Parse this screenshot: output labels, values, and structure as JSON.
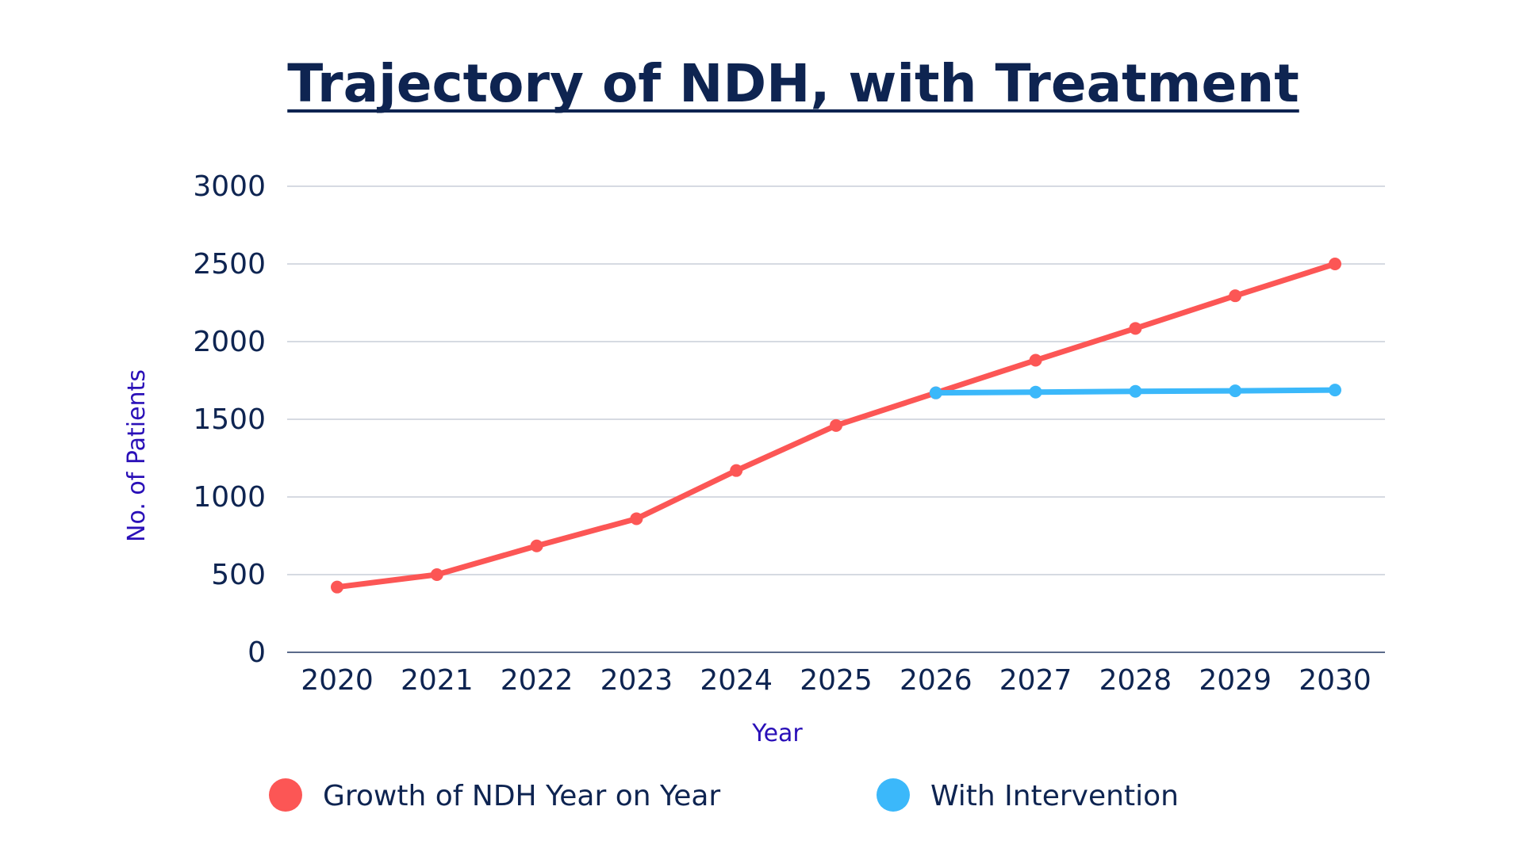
{
  "chart_data": {
    "type": "line",
    "title": "Trajectory of NDH, with Treatment",
    "xlabel": "Year",
    "ylabel": "No. of Patients",
    "categories": [
      "2020",
      "2021",
      "2022",
      "2023",
      "2024",
      "2025",
      "2026",
      "2027",
      "2028",
      "2029",
      "2030"
    ],
    "ylim": [
      0,
      3000
    ],
    "yticks": [
      0,
      500,
      1000,
      1500,
      2000,
      2500,
      3000
    ],
    "grid": true,
    "legend_position": "bottom",
    "series": [
      {
        "name": "Growth of NDH Year on Year",
        "color": "#fc5655",
        "values": [
          420,
          500,
          685,
          860,
          1170,
          1460,
          1670,
          1880,
          2085,
          2295,
          2500
        ]
      },
      {
        "name": "With Intervention",
        "color": "#3bb8fa",
        "values": [
          null,
          null,
          null,
          null,
          null,
          null,
          1670,
          1675,
          1680,
          1683,
          1688
        ]
      }
    ]
  },
  "colors": {
    "title": "#0e2451",
    "axis_title": "#2a10b8",
    "grid": "#c8cdd8",
    "axis_line": "#5a6a8a"
  }
}
